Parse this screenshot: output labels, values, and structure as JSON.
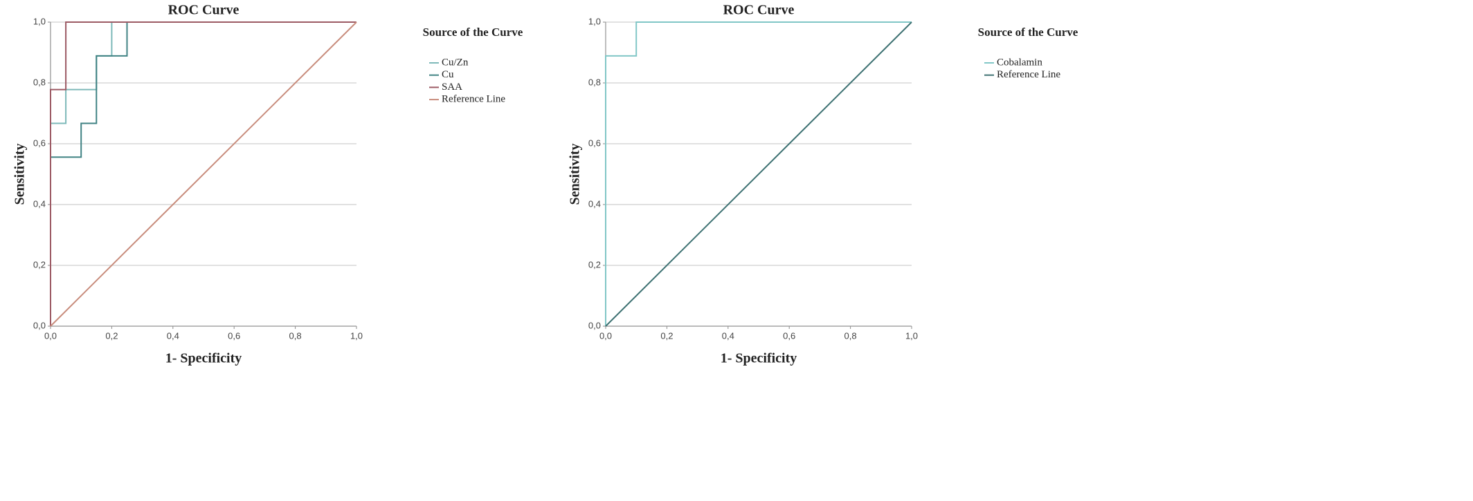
{
  "chart_data": [
    {
      "type": "line",
      "title": "ROC Curve",
      "xlabel": "1- Specificity",
      "ylabel": "Sensitivity",
      "legend_title": "Source of the Curve",
      "grid": true,
      "xlim": [
        0,
        1
      ],
      "ylim": [
        0,
        1
      ],
      "xticks": [
        {
          "value": 0,
          "label": "0,0"
        },
        {
          "value": 0.2,
          "label": "0,2"
        },
        {
          "value": 0.4,
          "label": "0,4"
        },
        {
          "value": 0.6,
          "label": "0,6"
        },
        {
          "value": 0.8,
          "label": "0,8"
        },
        {
          "value": 1,
          "label": "1,0"
        }
      ],
      "yticks": [
        {
          "value": 0,
          "label": "0,0"
        },
        {
          "value": 0.2,
          "label": "0,2"
        },
        {
          "value": 0.4,
          "label": "0,4"
        },
        {
          "value": 0.6,
          "label": "0,6"
        },
        {
          "value": 0.8,
          "label": "0,8"
        },
        {
          "value": 1,
          "label": "1,0"
        }
      ],
      "series": [
        {
          "name": "Cu/Zn",
          "color": "#7db9b9",
          "x": [
            0,
            0,
            0.05,
            0.05,
            0.15,
            0.15,
            0.2,
            0.2,
            1
          ],
          "values": [
            0,
            0.667,
            0.667,
            0.778,
            0.778,
            0.889,
            0.889,
            1,
            1
          ]
        },
        {
          "name": "Cu",
          "color": "#3f8283",
          "x": [
            0,
            0,
            0.1,
            0.1,
            0.15,
            0.15,
            0.25,
            0.25,
            1
          ],
          "values": [
            0,
            0.556,
            0.556,
            0.667,
            0.667,
            0.889,
            0.889,
            1,
            1
          ]
        },
        {
          "name": "SAA",
          "color": "#9c5a64",
          "x": [
            0,
            0,
            0.05,
            0.05,
            1
          ],
          "values": [
            0,
            0.778,
            0.778,
            1,
            1
          ]
        },
        {
          "name": "Reference Line",
          "color": "#c88c7c",
          "x": [
            0,
            1
          ],
          "values": [
            0,
            1
          ]
        }
      ]
    },
    {
      "type": "line",
      "title": "ROC Curve",
      "xlabel": "1- Specificity",
      "ylabel": "Sensitivity",
      "legend_title": "Source of the Curve",
      "grid": true,
      "xlim": [
        0,
        1
      ],
      "ylim": [
        0,
        1
      ],
      "xticks": [
        {
          "value": 0,
          "label": "0,0"
        },
        {
          "value": 0.2,
          "label": "0,2"
        },
        {
          "value": 0.4,
          "label": "0,4"
        },
        {
          "value": 0.6,
          "label": "0,6"
        },
        {
          "value": 0.8,
          "label": "0,8"
        },
        {
          "value": 1,
          "label": "1,0"
        }
      ],
      "yticks": [
        {
          "value": 0,
          "label": "0,0"
        },
        {
          "value": 0.2,
          "label": "0,2"
        },
        {
          "value": 0.4,
          "label": "0,4"
        },
        {
          "value": 0.6,
          "label": "0,6"
        },
        {
          "value": 0.8,
          "label": "0,8"
        },
        {
          "value": 1,
          "label": "1,0"
        }
      ],
      "series": [
        {
          "name": "Cobalamin",
          "color": "#80c6c6",
          "x": [
            0,
            0,
            0.1,
            0.1,
            1
          ],
          "values": [
            0,
            0.889,
            0.889,
            1,
            1
          ]
        },
        {
          "name": "Reference Line",
          "color": "#3d7172",
          "x": [
            0,
            1
          ],
          "values": [
            0,
            1
          ]
        }
      ]
    }
  ]
}
